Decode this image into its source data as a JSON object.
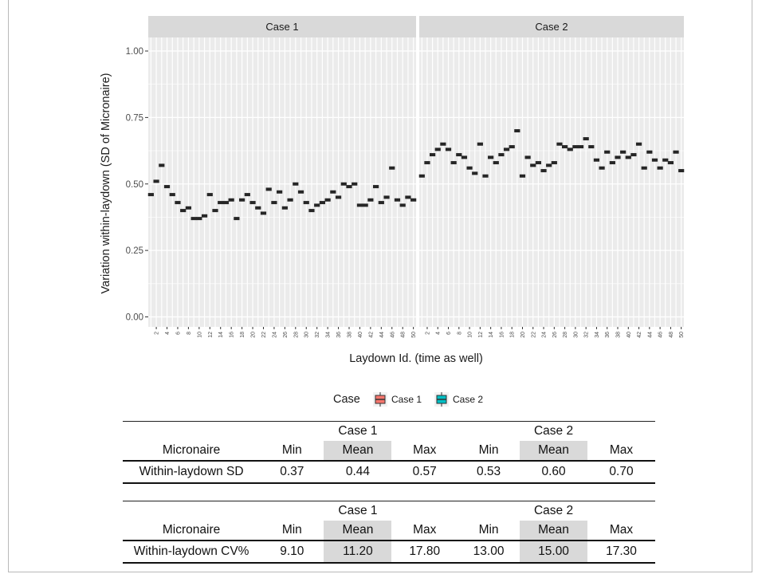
{
  "chart_data": {
    "type": "scatter",
    "ylabel": "Variation within-laydown (SD of Micronaire)",
    "xlabel": "Laydown Id. (time as well)",
    "ylim": [
      0,
      1.05
    ],
    "yticks": [
      {
        "value": 0.0,
        "label": "0.00"
      },
      {
        "value": 0.25,
        "label": "0.25"
      },
      {
        "value": 0.5,
        "label": "0.50"
      },
      {
        "value": 0.75,
        "label": "0.75"
      },
      {
        "value": 1.0,
        "label": "1.00"
      }
    ],
    "x_tick_labels": [
      "2",
      "4",
      "6",
      "8",
      "10",
      "12",
      "14",
      "16",
      "18",
      "20",
      "22",
      "24",
      "26",
      "28",
      "30",
      "32",
      "34",
      "36",
      "38",
      "40",
      "42",
      "44",
      "46",
      "48",
      "50"
    ],
    "legend": {
      "title": "Case",
      "entries": [
        "Case 1",
        "Case 2"
      ],
      "colors": [
        "#f8766d",
        "#00bfc4"
      ],
      "placement": "bottom"
    },
    "series": [
      {
        "name": "Case 1",
        "panel": "Case 1",
        "x": [
          1,
          2,
          3,
          4,
          5,
          6,
          7,
          8,
          9,
          10,
          11,
          12,
          13,
          14,
          15,
          16,
          17,
          18,
          19,
          20,
          21,
          22,
          23,
          24,
          25,
          26,
          27,
          28,
          29,
          30,
          31,
          32,
          33,
          34,
          35,
          36,
          37,
          38,
          39,
          40,
          41,
          42,
          43,
          44,
          45,
          46,
          47,
          48,
          49,
          50
        ],
        "values": [
          0.46,
          0.51,
          0.57,
          0.49,
          0.46,
          0.43,
          0.4,
          0.41,
          0.37,
          0.37,
          0.38,
          0.46,
          0.4,
          0.43,
          0.43,
          0.44,
          0.37,
          0.44,
          0.46,
          0.43,
          0.41,
          0.39,
          0.48,
          0.43,
          0.47,
          0.41,
          0.44,
          0.5,
          0.47,
          0.43,
          0.4,
          0.42,
          0.43,
          0.44,
          0.47,
          0.45,
          0.5,
          0.49,
          0.5,
          0.42,
          0.42,
          0.44,
          0.49,
          0.43,
          0.45,
          0.56,
          0.44,
          0.42,
          0.45,
          0.44
        ]
      },
      {
        "name": "Case 2",
        "panel": "Case 2",
        "x": [
          1,
          2,
          3,
          4,
          5,
          6,
          7,
          8,
          9,
          10,
          11,
          12,
          13,
          14,
          15,
          16,
          17,
          18,
          19,
          20,
          21,
          22,
          23,
          24,
          25,
          26,
          27,
          28,
          29,
          30,
          31,
          32,
          33,
          34,
          35,
          36,
          37,
          38,
          39,
          40,
          41,
          42,
          43,
          44,
          45,
          46,
          47,
          48,
          49,
          50
        ],
        "values": [
          0.53,
          0.58,
          0.61,
          0.63,
          0.65,
          0.63,
          0.58,
          0.61,
          0.6,
          0.56,
          0.54,
          0.65,
          0.53,
          0.6,
          0.58,
          0.61,
          0.63,
          0.64,
          0.7,
          0.53,
          0.6,
          0.57,
          0.58,
          0.55,
          0.57,
          0.58,
          0.65,
          0.64,
          0.63,
          0.64,
          0.64,
          0.67,
          0.64,
          0.59,
          0.56,
          0.62,
          0.58,
          0.6,
          0.62,
          0.6,
          0.61,
          0.65,
          0.56,
          0.62,
          0.59,
          0.56,
          0.59,
          0.58,
          0.62,
          0.55
        ]
      }
    ]
  },
  "panels": {
    "case1": "Case 1",
    "case2": "Case 2"
  },
  "tables": [
    {
      "group_headers": [
        "Case 1",
        "Case 2"
      ],
      "columns": [
        "Micronaire",
        "Min",
        "Mean",
        "Max",
        "Min",
        "Mean",
        "Max"
      ],
      "row": [
        "Within-laydown SD",
        "0.37",
        "0.44",
        "0.57",
        "0.53",
        "0.60",
        "0.70"
      ]
    },
    {
      "group_headers": [
        "Case 1",
        "Case 2"
      ],
      "columns": [
        "Micronaire",
        "Min",
        "Mean",
        "Max",
        "Min",
        "Mean",
        "Max"
      ],
      "row": [
        "Within-laydown CV%",
        "9.10",
        "11.20",
        "17.80",
        "13.00",
        "15.00",
        "17.30"
      ]
    }
  ]
}
